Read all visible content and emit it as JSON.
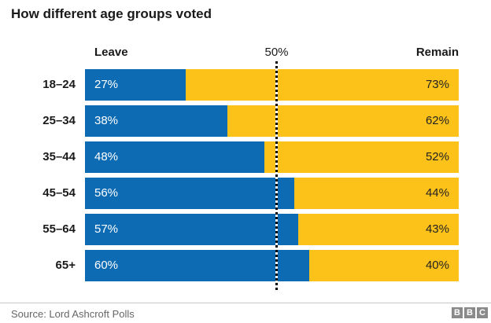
{
  "title": "How different age groups voted",
  "header": {
    "leave_label": "Leave",
    "center_label": "50%",
    "remain_label": "Remain"
  },
  "chart_data": {
    "type": "bar",
    "orientation": "horizontal",
    "stacked": true,
    "title": "How different age groups voted",
    "categories": [
      "18–24",
      "25–34",
      "35–44",
      "45–54",
      "55–64",
      "65+"
    ],
    "series": [
      {
        "name": "Leave",
        "color": "#0d6bb4",
        "values": [
          27,
          38,
          48,
          56,
          57,
          60
        ]
      },
      {
        "name": "Remain",
        "color": "#fdc21a",
        "values": [
          73,
          62,
          52,
          44,
          43,
          40
        ]
      }
    ],
    "value_suffix": "%",
    "xlim": [
      0,
      100
    ],
    "grid": false,
    "legend_position": "top-as-column-headers",
    "reference_line": {
      "value": 50,
      "label": "50%",
      "style": "dotted",
      "color": "#000000"
    }
  },
  "footer": {
    "source": "Source: Lord Ashcroft Polls",
    "logo_letters": [
      "B",
      "B",
      "C"
    ]
  }
}
